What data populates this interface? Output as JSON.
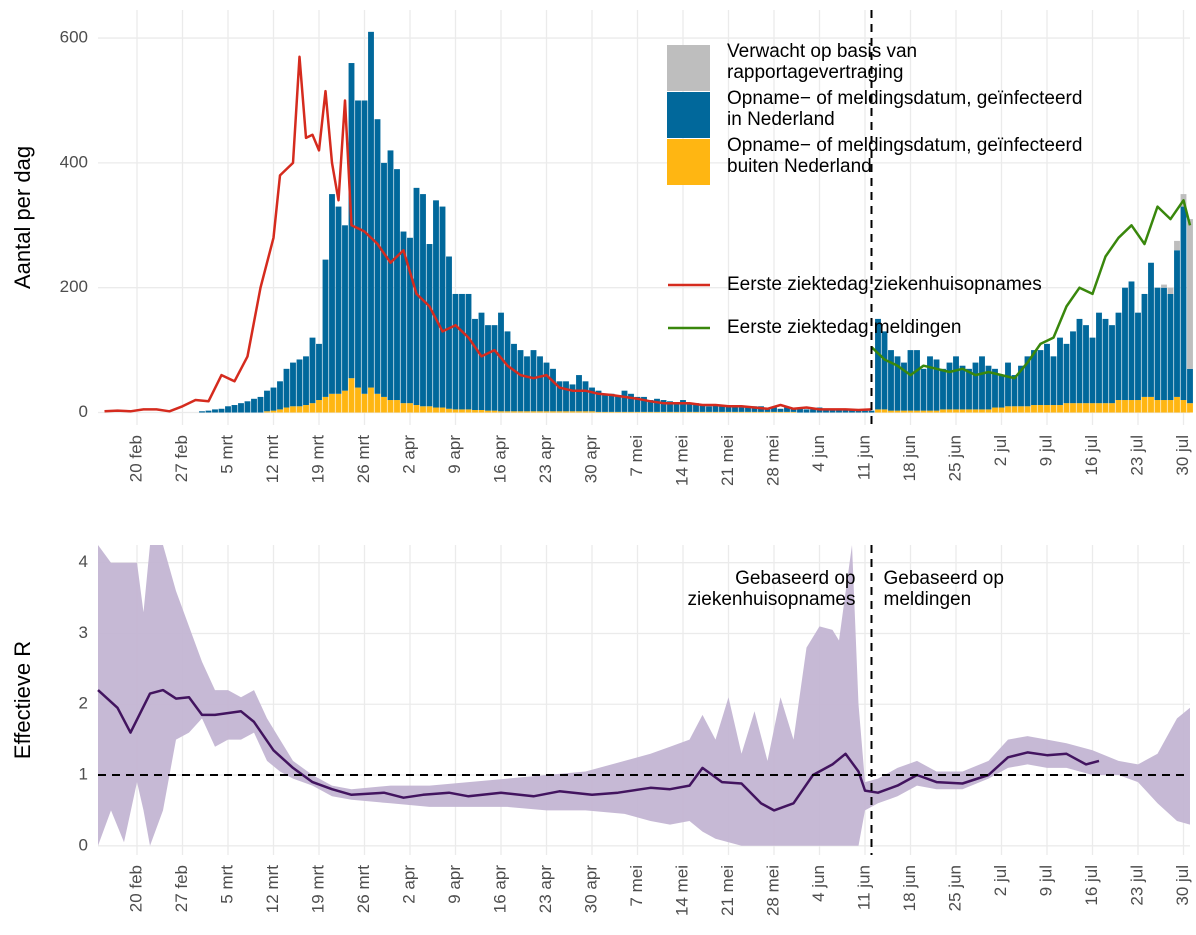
{
  "chart_data": [
    {
      "type": "bar",
      "y_label": "Aantal per dag",
      "xlim": [
        45,
        213
      ],
      "ylim": [
        -20,
        645
      ],
      "yticks": [
        0,
        200,
        400,
        600
      ],
      "grid": true,
      "vline": 164,
      "xticks": [
        {
          "value": 51,
          "label": "20 feb"
        },
        {
          "value": 58,
          "label": "27 feb"
        },
        {
          "value": 65,
          "label": "5 mrt"
        },
        {
          "value": 72,
          "label": "12 mrt"
        },
        {
          "value": 79,
          "label": "19 mrt"
        },
        {
          "value": 86,
          "label": "26 mrt"
        },
        {
          "value": 93,
          "label": "2 apr"
        },
        {
          "value": 100,
          "label": "9 apr"
        },
        {
          "value": 107,
          "label": "16 apr"
        },
        {
          "value": 114,
          "label": "23 apr"
        },
        {
          "value": 121,
          "label": "30 apr"
        },
        {
          "value": 128,
          "label": "7 mei"
        },
        {
          "value": 135,
          "label": "14 mei"
        },
        {
          "value": 142,
          "label": "21 mei"
        },
        {
          "value": 149,
          "label": "28 mei"
        },
        {
          "value": 156,
          "label": "4 jun"
        },
        {
          "value": 163,
          "label": "11 jun"
        },
        {
          "value": 170,
          "label": "18 jun"
        },
        {
          "value": 177,
          "label": "25 jun"
        },
        {
          "value": 184,
          "label": "2 jul"
        },
        {
          "value": 191,
          "label": "9 jul"
        },
        {
          "value": 198,
          "label": "16 jul"
        },
        {
          "value": 205,
          "label": "23 jul"
        },
        {
          "value": 212,
          "label": "30 jul"
        }
      ],
      "x": [
        61,
        62,
        63,
        64,
        65,
        66,
        67,
        68,
        69,
        70,
        71,
        72,
        73,
        74,
        75,
        76,
        77,
        78,
        79,
        80,
        81,
        82,
        83,
        84,
        85,
        86,
        87,
        88,
        89,
        90,
        91,
        92,
        93,
        94,
        95,
        96,
        97,
        98,
        99,
        100,
        101,
        102,
        103,
        104,
        105,
        106,
        107,
        108,
        109,
        110,
        111,
        112,
        113,
        114,
        115,
        116,
        117,
        118,
        119,
        120,
        121,
        122,
        123,
        124,
        125,
        126,
        127,
        128,
        129,
        130,
        131,
        132,
        133,
        134,
        135,
        136,
        137,
        138,
        139,
        140,
        141,
        142,
        143,
        144,
        145,
        146,
        147,
        148,
        149,
        150,
        151,
        152,
        153,
        154,
        155,
        156,
        157,
        158,
        159,
        160,
        161,
        162,
        163,
        164,
        165,
        166,
        167,
        168,
        169,
        170,
        171,
        172,
        173,
        174,
        175,
        176,
        177,
        178,
        179,
        180,
        181,
        182,
        183,
        184,
        185,
        186,
        187,
        188,
        189,
        190,
        191,
        192,
        193,
        194,
        195,
        196,
        197,
        198,
        199,
        200,
        201,
        202,
        203,
        204,
        205,
        206,
        207,
        208,
        209,
        210,
        211,
        212,
        213
      ],
      "series": [
        {
          "name": "Opname− of meldingsdatum, geïnfecteerd\nbuiten Nederland",
          "color": "#ffb612",
          "values": [
            0,
            0,
            0,
            0,
            0,
            0,
            0,
            0,
            0,
            0,
            2,
            3,
            5,
            8,
            10,
            10,
            12,
            15,
            20,
            25,
            30,
            30,
            35,
            55,
            40,
            30,
            40,
            30,
            25,
            20,
            20,
            15,
            15,
            12,
            10,
            10,
            8,
            8,
            6,
            5,
            5,
            5,
            4,
            4,
            3,
            3,
            2,
            2,
            2,
            2,
            2,
            2,
            2,
            2,
            2,
            2,
            2,
            2,
            2,
            2,
            2,
            1,
            1,
            1,
            1,
            1,
            1,
            1,
            1,
            1,
            1,
            1,
            1,
            1,
            1,
            1,
            1,
            1,
            1,
            1,
            1,
            1,
            1,
            1,
            1,
            1,
            1,
            1,
            1,
            1,
            1,
            1,
            0,
            0,
            0,
            0,
            0,
            0,
            0,
            0,
            0,
            0,
            0,
            0,
            5,
            5,
            3,
            3,
            3,
            3,
            3,
            3,
            3,
            3,
            5,
            5,
            5,
            5,
            5,
            5,
            5,
            5,
            8,
            8,
            10,
            10,
            10,
            10,
            12,
            12,
            12,
            12,
            12,
            15,
            15,
            15,
            15,
            15,
            15,
            15,
            15,
            20,
            20,
            20,
            20,
            25,
            25,
            20,
            20,
            20,
            25,
            20,
            15
          ]
        },
        {
          "name": "Opname− of meldingsdatum, geïnfecteerd\nin Nederland",
          "color": "#01689b",
          "values": [
            2,
            3,
            5,
            6,
            10,
            12,
            15,
            18,
            22,
            25,
            33,
            37,
            45,
            62,
            70,
            75,
            78,
            105,
            90,
            220,
            320,
            300,
            265,
            505,
            460,
            470,
            570,
            440,
            375,
            400,
            370,
            275,
            265,
            348,
            340,
            260,
            332,
            322,
            244,
            185,
            185,
            185,
            146,
            156,
            137,
            137,
            158,
            128,
            108,
            98,
            88,
            98,
            88,
            78,
            68,
            48,
            48,
            43,
            58,
            48,
            38,
            34,
            29,
            29,
            27,
            34,
            29,
            24,
            24,
            19,
            21,
            19,
            17,
            14,
            19,
            14,
            14,
            11,
            9,
            11,
            9,
            9,
            9,
            7,
            7,
            9,
            9,
            7,
            7,
            5,
            7,
            5,
            6,
            5,
            5,
            8,
            6,
            5,
            5,
            5,
            5,
            4,
            3,
            3,
            145,
            125,
            97,
            87,
            77,
            97,
            97,
            67,
            87,
            82,
            65,
            75,
            85,
            70,
            65,
            75,
            85,
            70,
            62,
            52,
            70,
            50,
            65,
            80,
            88,
            88,
            98,
            78,
            108,
            95,
            115,
            135,
            125,
            105,
            145,
            135,
            125,
            140,
            180,
            190,
            140,
            165,
            215,
            180,
            180,
            170,
            235,
            310,
            55
          ]
        },
        {
          "name": "Verwacht op basis van\nrapportagevertraging",
          "color": "#bebebe",
          "x": [
            209,
            210,
            211,
            212,
            213
          ],
          "values": [
            5,
            10,
            15,
            20,
            240
          ]
        }
      ],
      "lines": [
        {
          "name": "Eerste ziektedag ziekenhuisopnames",
          "color": "#d52b1e",
          "x": [
            46,
            48,
            50,
            52,
            54,
            56,
            58,
            60,
            62,
            64,
            66,
            68,
            70,
            72,
            73,
            74,
            75,
            76,
            77,
            78,
            79,
            80,
            81,
            82,
            83,
            84,
            86,
            88,
            90,
            92,
            94,
            96,
            98,
            100,
            102,
            104,
            106,
            108,
            110,
            112,
            114,
            116,
            118,
            120,
            122,
            124,
            126,
            128,
            130,
            132,
            134,
            136,
            138,
            140,
            142,
            144,
            146,
            148,
            150,
            152,
            154,
            156,
            158,
            160,
            162,
            164
          ],
          "values": [
            2,
            3,
            2,
            5,
            5,
            2,
            10,
            20,
            18,
            60,
            50,
            90,
            200,
            280,
            380,
            390,
            400,
            570,
            440,
            445,
            420,
            515,
            400,
            340,
            500,
            300,
            290,
            270,
            240,
            260,
            190,
            170,
            130,
            140,
            120,
            90,
            100,
            75,
            60,
            55,
            60,
            40,
            35,
            35,
            30,
            28,
            25,
            22,
            18,
            15,
            15,
            15,
            12,
            12,
            10,
            10,
            8,
            6,
            12,
            6,
            8,
            5,
            5,
            5,
            4,
            5
          ]
        },
        {
          "name": "Eerste ziektedag meldingen",
          "color": "#39870c",
          "x": [
            164,
            166,
            168,
            170,
            172,
            174,
            176,
            178,
            180,
            182,
            184,
            186,
            188,
            190,
            192,
            194,
            196,
            198,
            200,
            202,
            204,
            206,
            208,
            210,
            212,
            213
          ],
          "values": [
            105,
            85,
            75,
            60,
            75,
            70,
            65,
            70,
            60,
            65,
            60,
            55,
            80,
            110,
            120,
            170,
            200,
            190,
            250,
            280,
            300,
            270,
            330,
            310,
            340,
            300
          ]
        }
      ]
    },
    {
      "type": "line",
      "y_label": "Effectieve R",
      "xlim": [
        45,
        213
      ],
      "ylim": [
        -0.13,
        4.25
      ],
      "yticks": [
        0,
        1,
        2,
        3,
        4
      ],
      "grid": true,
      "vline": 164,
      "hline": 1,
      "xticks": [
        {
          "value": 51,
          "label": "20 feb"
        },
        {
          "value": 58,
          "label": "27 feb"
        },
        {
          "value": 65,
          "label": "5 mrt"
        },
        {
          "value": 72,
          "label": "12 mrt"
        },
        {
          "value": 79,
          "label": "19 mrt"
        },
        {
          "value": 86,
          "label": "26 mrt"
        },
        {
          "value": 93,
          "label": "2 apr"
        },
        {
          "value": 100,
          "label": "9 apr"
        },
        {
          "value": 107,
          "label": "16 apr"
        },
        {
          "value": 114,
          "label": "23 apr"
        },
        {
          "value": 121,
          "label": "30 apr"
        },
        {
          "value": 128,
          "label": "7 mei"
        },
        {
          "value": 135,
          "label": "14 mei"
        },
        {
          "value": 142,
          "label": "21 mei"
        },
        {
          "value": 149,
          "label": "28 mei"
        },
        {
          "value": 156,
          "label": "4 jun"
        },
        {
          "value": 163,
          "label": "11 jun"
        },
        {
          "value": 170,
          "label": "18 jun"
        },
        {
          "value": 177,
          "label": "25 jun"
        },
        {
          "value": 184,
          "label": "2 jul"
        },
        {
          "value": 191,
          "label": "9 jul"
        },
        {
          "value": 198,
          "label": "16 jul"
        },
        {
          "value": 205,
          "label": "23 jul"
        },
        {
          "value": 212,
          "label": "30 jul"
        }
      ],
      "annotations": [
        "Gebaseerd op\nziekenhuisopnames",
        "Gebaseerd op\nmeldingen"
      ],
      "band": {
        "color": "#c3b5d3",
        "x": [
          45,
          47,
          49,
          51,
          52,
          53,
          55,
          57,
          59,
          61,
          63,
          65,
          67,
          69,
          71,
          73,
          75,
          78,
          81,
          84,
          90,
          96,
          102,
          108,
          114,
          120,
          126,
          130,
          133,
          136,
          138,
          140,
          142,
          144,
          146,
          148,
          150,
          152,
          154,
          156,
          158,
          159,
          161,
          162,
          163,
          165,
          168,
          171,
          174,
          178,
          182,
          185,
          188,
          191,
          194,
          198,
          202,
          205,
          208,
          211,
          213
        ],
        "lower": [
          0,
          0.5,
          0.05,
          0.9,
          0.5,
          0,
          0.5,
          1.5,
          1.6,
          1.8,
          1.4,
          1.5,
          1.5,
          1.6,
          1.2,
          1.05,
          0.95,
          0.85,
          0.7,
          0.65,
          0.6,
          0.55,
          0.55,
          0.55,
          0.5,
          0.5,
          0.45,
          0.35,
          0.3,
          0.35,
          0.2,
          0.1,
          0.05,
          0,
          0,
          0,
          0,
          0,
          0,
          0,
          0,
          0,
          0,
          0,
          0.5,
          0.6,
          0.7,
          0.85,
          0.8,
          0.8,
          0.95,
          1.1,
          1.15,
          1.1,
          1.1,
          1.0,
          1.0,
          0.9,
          0.6,
          0.35,
          0.3
        ],
        "upper": [
          4.25,
          4,
          4,
          4,
          3.3,
          4.25,
          4.25,
          3.6,
          3.1,
          2.6,
          2.2,
          2.2,
          2.1,
          2.2,
          1.8,
          1.5,
          1.2,
          1.0,
          0.85,
          0.8,
          0.85,
          0.85,
          0.9,
          0.95,
          1.0,
          1.05,
          1.2,
          1.3,
          1.4,
          1.5,
          1.85,
          1.5,
          2.1,
          1.3,
          1.9,
          1.2,
          2.1,
          1.5,
          2.8,
          3.1,
          3.05,
          2.9,
          4.25,
          2.0,
          0.9,
          0.95,
          1.1,
          1.2,
          1.05,
          1.05,
          1.2,
          1.5,
          1.55,
          1.5,
          1.45,
          1.35,
          1.2,
          1.15,
          1.3,
          1.8,
          1.95
        ]
      },
      "line": {
        "color": "#42145f",
        "x": [
          45,
          48,
          50,
          53,
          55,
          57,
          59,
          61,
          63,
          67,
          69,
          72,
          75,
          78,
          81,
          84,
          89,
          92,
          95,
          99,
          102,
          107,
          112,
          116,
          121,
          125,
          130,
          133,
          136,
          138,
          141,
          144,
          147,
          149,
          152,
          155,
          158,
          160,
          162,
          163,
          165,
          168,
          171,
          174,
          178,
          182,
          185,
          188,
          191,
          194,
          197,
          199
        ],
        "values": [
          2.2,
          1.95,
          1.6,
          2.15,
          2.2,
          2.08,
          2.1,
          1.85,
          1.85,
          1.9,
          1.75,
          1.35,
          1.1,
          0.9,
          0.8,
          0.72,
          0.75,
          0.68,
          0.72,
          0.75,
          0.7,
          0.75,
          0.7,
          0.77,
          0.72,
          0.75,
          0.82,
          0.8,
          0.85,
          1.1,
          0.9,
          0.88,
          0.6,
          0.5,
          0.6,
          1.0,
          1.15,
          1.3,
          1.05,
          0.78,
          0.75,
          0.85,
          1.0,
          0.9,
          0.88,
          1.0,
          1.25,
          1.32,
          1.28,
          1.3,
          1.15,
          1.2
        ]
      }
    }
  ]
}
